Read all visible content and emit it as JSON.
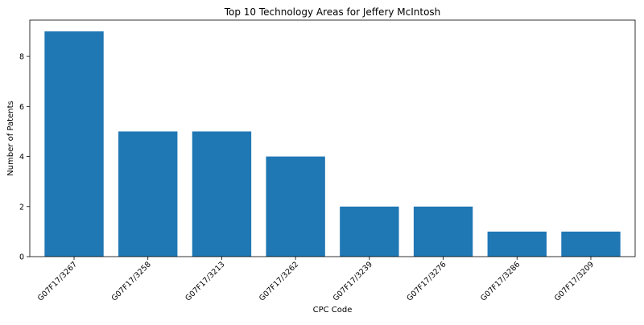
{
  "chart_data": {
    "type": "bar",
    "title": "Top 10 Technology Areas for Jeffery McIntosh",
    "xlabel": "CPC Code",
    "ylabel": "Number of Patents",
    "categories": [
      "G07F17/3267",
      "G07F17/3258",
      "G07F17/3213",
      "G07F17/3262",
      "G07F17/3239",
      "G07F17/3276",
      "G07F17/3286",
      "G07F17/3209"
    ],
    "values": [
      9,
      5,
      5,
      4,
      2,
      2,
      1,
      1
    ],
    "ylim": [
      0,
      9.45
    ],
    "yticks": [
      0,
      2,
      4,
      6,
      8
    ],
    "grid": false,
    "bar_color": "#1f77b4"
  }
}
